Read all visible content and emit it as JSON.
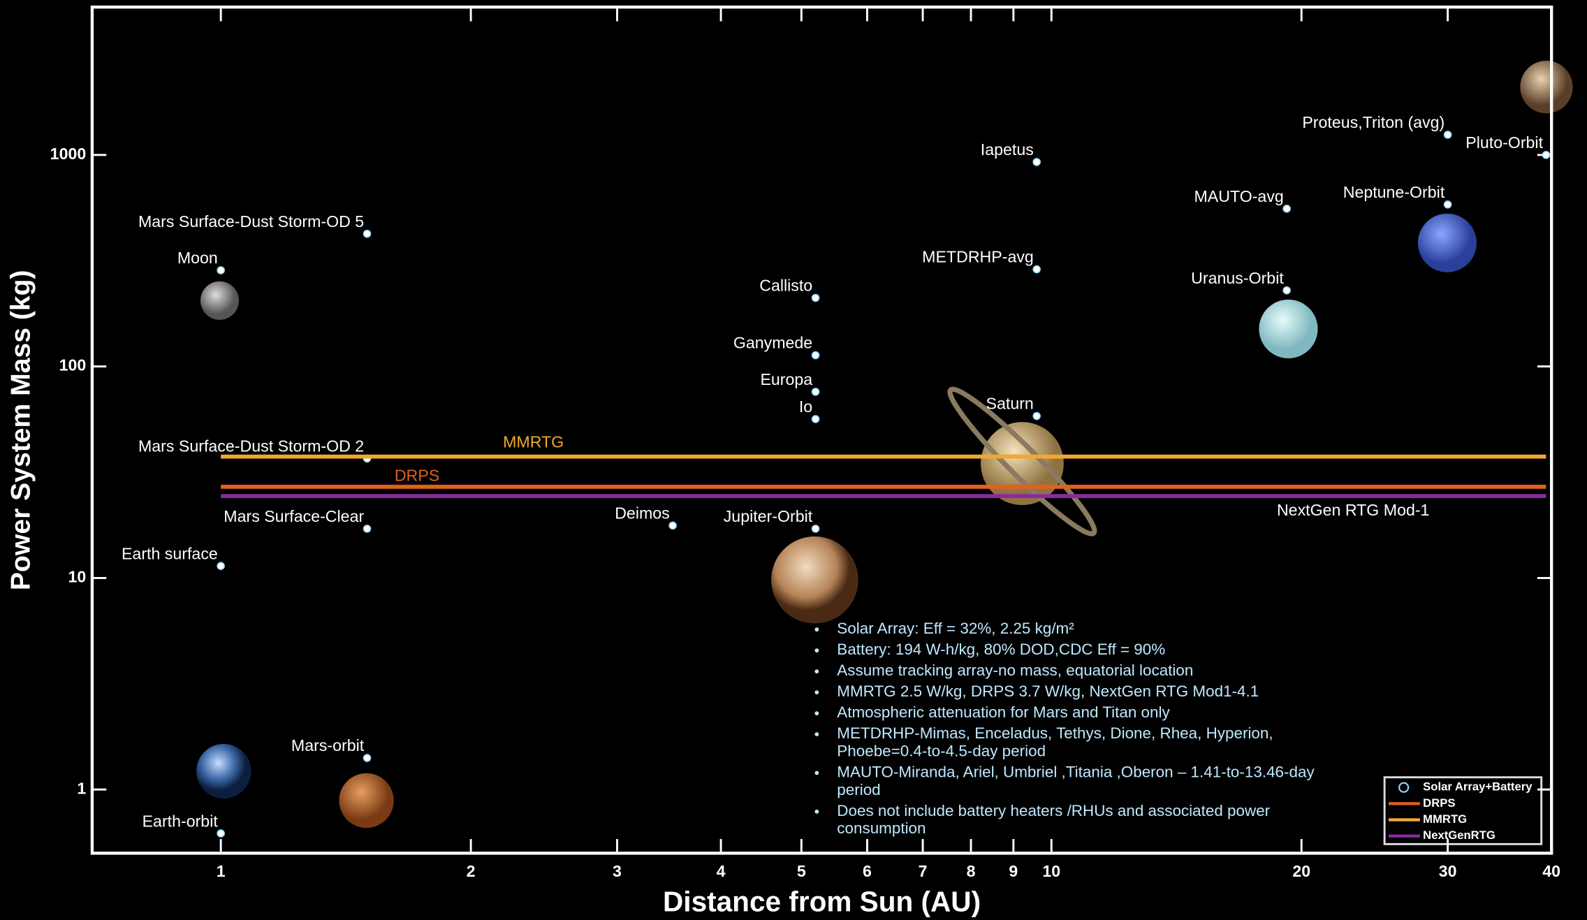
{
  "chart_data": {
    "type": "scatter",
    "xlabel": "Distance from Sun (AU)",
    "ylabel": "Power System Mass (kg)",
    "log_x": true,
    "log_y": true,
    "xlim": [
      0.7,
      40
    ],
    "ylim": [
      0.5,
      5000
    ],
    "xticks": [
      1,
      2,
      3,
      4,
      5,
      6,
      7,
      8,
      9,
      10,
      20,
      30,
      40
    ],
    "yticks": [
      1,
      10,
      100,
      1000
    ],
    "series": [
      {
        "name": "Solar Array+Battery",
        "type": "scatter",
        "color": "#8fd3ff",
        "labels": [
          "Mars Surface-Dust Storm-OD 5",
          "Moon",
          "Mars Surface-Dust Storm-OD 2",
          "Mars Surface-Clear",
          "Earth surface",
          "Mars-orbit",
          "Earth-orbit",
          "Deimos",
          "Jupiter-Orbit",
          "Io",
          "Europa",
          "Ganymede",
          "Callisto",
          "Saturn",
          "METDRHP-avg",
          "Iapetus",
          "MAUTO-avg",
          "Uranus-Orbit",
          "Neptune-Orbit",
          "Proteus,Triton (avg)",
          "Pluto-Orbit"
        ],
        "x": [
          1.5,
          1,
          1.5,
          1.5,
          1,
          1.5,
          1,
          3.5,
          5.2,
          5.2,
          5.2,
          5.2,
          5.2,
          9.6,
          9.6,
          9.6,
          19.2,
          19.2,
          30,
          30,
          39.4
        ],
        "values": [
          424,
          285,
          36.7,
          17.1,
          11.4,
          1.41,
          0.62,
          17.7,
          17.1,
          56.4,
          75.9,
          113,
          211,
          58.3,
          288,
          926,
          557,
          229,
          583,
          1246,
          1000
        ]
      },
      {
        "name": "DRPS",
        "type": "line",
        "color": "#e0601e",
        "x": [
          1,
          39.4
        ],
        "values": [
          27,
          27
        ]
      },
      {
        "name": "MMRTG",
        "type": "line",
        "color": "#f0a830",
        "x": [
          1,
          39.4
        ],
        "values": [
          37.5,
          37.5
        ]
      },
      {
        "name": "NextGenRTG",
        "type": "line",
        "color": "#8a2aa0",
        "x": [
          1,
          39.4
        ],
        "values": [
          24.4,
          24.4
        ]
      }
    ],
    "annotations": [
      "MMRTG",
      "DRPS",
      "NextGen RTG Mod-1"
    ],
    "notes": [
      [
        "Solar Array: Eff = 32%, 2.25 kg/m²"
      ],
      [
        "Battery: 194 W-h/kg, 80% DOD,CDC Eff = 90%"
      ],
      [
        "Assume tracking array-no mass, equatorial location"
      ],
      [
        "MMRTG 2.5 W/kg, DRPS 3.7 W/kg, NextGen RTG Mod1-4.1"
      ],
      [
        "Atmospheric attenuation for Mars and Titan only"
      ],
      [
        "METDRHP-Mimas, Enceladus, Tethys, Dione, Rhea, Hyperion,",
        "Phoebe=0.4-to-4.5-day period"
      ],
      [
        "MAUTO-Miranda, Ariel, Umbriel ,Titania ,Oberon – 1.41-to-13.46-day",
        "period"
      ],
      [
        "Does not include battery heaters /RHUs and associated power",
        "consumption"
      ]
    ],
    "legend_position": "lower right"
  }
}
